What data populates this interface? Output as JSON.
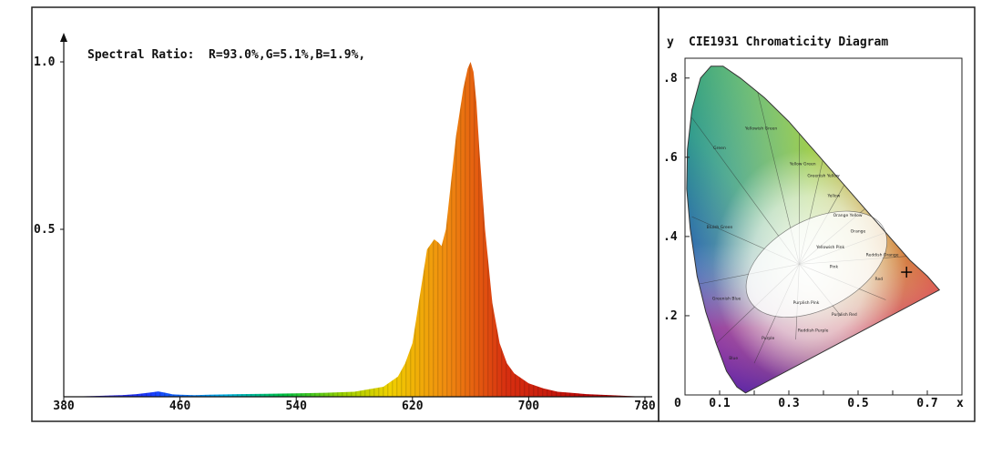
{
  "chart_data": [
    {
      "type": "area",
      "title": "",
      "annotation": "Spectral Ratio:  R=93.0%,G=5.1%,B=1.9%,",
      "xlabel": "",
      "ylabel": "",
      "xlim": [
        380,
        780
      ],
      "ylim": [
        0,
        1.0
      ],
      "x_ticks": [
        380,
        460,
        540,
        620,
        700,
        780
      ],
      "y_ticks": [
        {
          "value": 1.0,
          "label": "1.0"
        },
        {
          "value": 0.5,
          "label": "0.5"
        }
      ],
      "fill": "wavelength-colored spectrum",
      "series": [
        {
          "x": [
            380,
            400,
            420,
            430,
            440,
            445,
            450,
            455,
            460,
            470,
            480,
            500,
            520,
            540,
            560,
            580,
            600,
            610,
            615,
            620,
            625,
            630,
            635,
            638,
            640,
            643,
            646,
            650,
            655,
            658,
            660,
            662,
            664,
            666,
            670,
            675,
            680,
            685,
            690,
            700,
            710,
            720,
            740,
            760,
            780
          ],
          "values": [
            0,
            0.002,
            0.005,
            0.008,
            0.013,
            0.016,
            0.012,
            0.007,
            0.006,
            0.005,
            0.006,
            0.008,
            0.009,
            0.01,
            0.012,
            0.015,
            0.03,
            0.06,
            0.1,
            0.16,
            0.3,
            0.44,
            0.47,
            0.46,
            0.45,
            0.5,
            0.62,
            0.78,
            0.92,
            0.98,
            1.0,
            0.97,
            0.88,
            0.74,
            0.5,
            0.28,
            0.16,
            0.1,
            0.07,
            0.04,
            0.025,
            0.015,
            0.008,
            0.004,
            0
          ]
        }
      ]
    },
    {
      "type": "scatter",
      "title": "CIE1931 Chromaticity Diagram",
      "xlabel": "x",
      "ylabel": "y",
      "xlim": [
        0,
        0.8
      ],
      "ylim": [
        0,
        0.85
      ],
      "x_ticks": [
        {
          "value": 0,
          "label": "0"
        },
        {
          "value": 0.1,
          "label": "0.1"
        },
        {
          "value": 0.3,
          "label": "0.3"
        },
        {
          "value": 0.5,
          "label": "0.5"
        },
        {
          "value": 0.7,
          "label": "0.7"
        }
      ],
      "y_ticks": [
        {
          "value": 0.2,
          "label": ".2"
        },
        {
          "value": 0.4,
          "label": ".4"
        },
        {
          "value": 0.6,
          "label": ".6"
        },
        {
          "value": 0.8,
          "label": ".8"
        }
      ],
      "point": {
        "x": 0.64,
        "y": 0.31
      },
      "region_labels": [
        "Green",
        "Yellowish Green",
        "Yellow Green",
        "Greenish Yellow",
        "Yellow",
        "Orange Yellow",
        "Orange",
        "Bluish Green",
        "Yellowish Pink",
        "Reddish Orange",
        "Pink",
        "Red",
        "Greenish Blue",
        "Purplish Pink",
        "Purplish Red",
        "Blue",
        "Purple",
        "Reddish Purple"
      ]
    }
  ]
}
